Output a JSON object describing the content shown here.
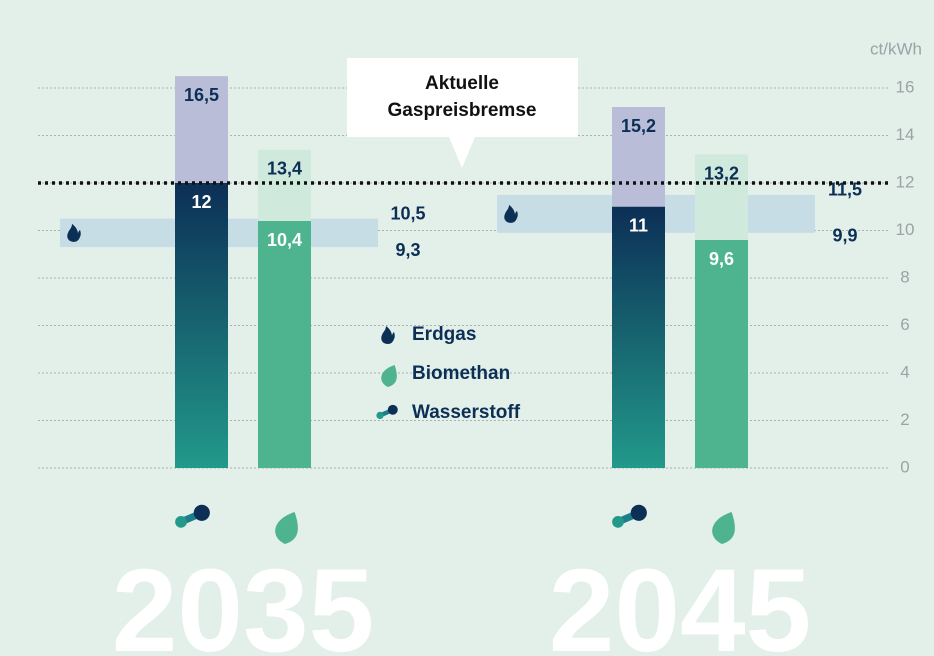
{
  "chart_data": {
    "type": "range_bar",
    "unit": "ct/kWh",
    "categories": [
      "2035",
      "2045"
    ],
    "ylim": [
      0,
      16
    ],
    "yticks": [
      0,
      2,
      4,
      6,
      8,
      10,
      12,
      14,
      16
    ],
    "grid": true,
    "reference": {
      "value": 12,
      "label": [
        "Aktuelle",
        "Gaspreisbremse"
      ]
    },
    "series": [
      {
        "name": "Erdgas",
        "color": "#c6dde6",
        "color_light": "#c6dde6",
        "low": [
          9.3,
          9.9
        ],
        "high": [
          10.5,
          11.5
        ],
        "low_labels": [
          "9,3",
          "9,9"
        ],
        "high_labels": [
          "10,5",
          "11,5"
        ]
      },
      {
        "name": "Biomethan",
        "color": "#4db48f",
        "color_light": "#cfe9dd",
        "low": [
          10.4,
          9.6
        ],
        "high": [
          13.4,
          13.2
        ],
        "low_labels": [
          "10,4",
          "9,6"
        ],
        "high_labels": [
          "13,4",
          "13,2"
        ]
      },
      {
        "name": "Wasserstoff",
        "color": "#0c2f56",
        "color_light": "#babdd7",
        "low": [
          12,
          11
        ],
        "high": [
          16.5,
          15.2
        ],
        "low_labels": [
          "12",
          "11"
        ],
        "high_labels": [
          "16,5",
          "15,2"
        ]
      }
    ]
  }
}
